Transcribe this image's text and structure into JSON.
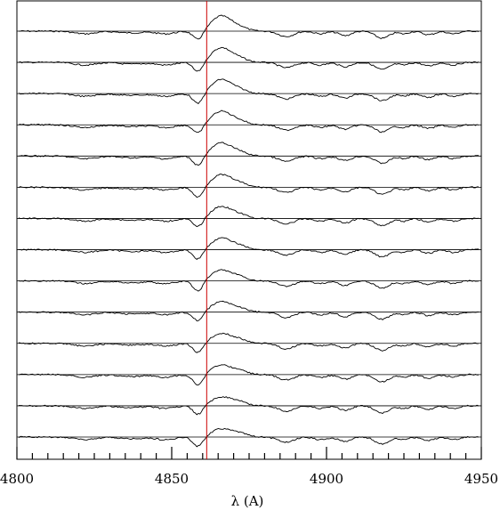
{
  "chart_data": {
    "type": "line",
    "title": "",
    "xlabel": "λ (A)",
    "ylabel": "",
    "xlim": [
      4800,
      4950
    ],
    "x_ticks": [
      4800,
      4850,
      4900,
      4950
    ],
    "x_tick_labels": [
      "4800",
      "4850",
      "4900",
      "4950"
    ],
    "minor_tick_step": 5,
    "reference_line": {
      "x": 4861.3,
      "color": "#cc0000"
    },
    "spectrum_count": 14,
    "stacked": true,
    "series_color": "#000000",
    "baseline_color": "#000000"
  }
}
